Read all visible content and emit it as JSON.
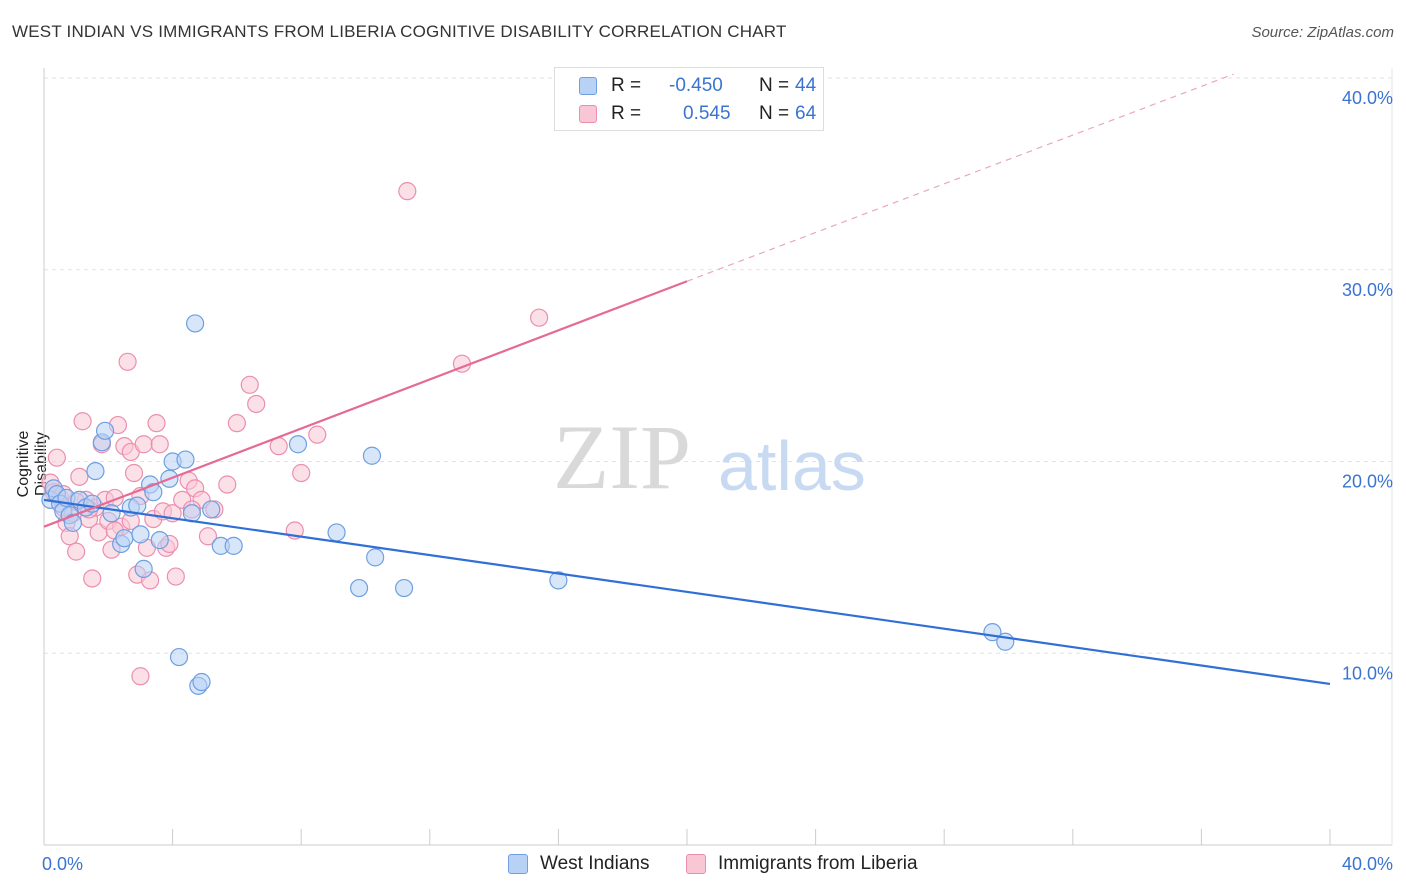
{
  "title": "WEST INDIAN VS IMMIGRANTS FROM LIBERIA COGNITIVE DISABILITY CORRELATION CHART",
  "source": "Source: ZipAtlas.com",
  "watermark": {
    "zip": "ZIP",
    "atlas": "atlas"
  },
  "stats": [
    {
      "r_label": "R =",
      "r_value": "-0.450",
      "n_label": "N =",
      "n_value": "44",
      "color": "blue"
    },
    {
      "r_label": "R =",
      "r_value": "0.545",
      "n_label": "N =",
      "n_value": "64",
      "color": "pink"
    }
  ],
  "legend": [
    {
      "label": "West Indians",
      "color": "blue"
    },
    {
      "label": "Immigrants from Liberia",
      "color": "pink"
    }
  ],
  "colors": {
    "blue_fill": "#b8d2f5",
    "blue_stroke": "#6f9fe0",
    "blue_line": "#2f6fd6",
    "pink_fill": "#f9c6d6",
    "pink_stroke": "#eb8fae",
    "pink_line": "#e56b94",
    "axis_text": "#3a74d0",
    "grid": "#e2e2e2"
  },
  "chart_data": {
    "type": "scatter",
    "title": "WEST INDIAN VS IMMIGRANTS FROM LIBERIA COGNITIVE DISABILITY CORRELATION CHART",
    "xlabel": "",
    "ylabel": "Cognitive Disability",
    "xlim": [
      0,
      40
    ],
    "ylim": [
      0,
      40
    ],
    "x_tick_labels": [
      "0.0%",
      "40.0%"
    ],
    "y_ticks": [
      10,
      20,
      30,
      40
    ],
    "y_tick_labels": [
      "10.0%",
      "20.0%",
      "30.0%",
      "40.0%"
    ],
    "grid": true,
    "series": [
      {
        "name": "West Indians",
        "color": "blue",
        "trendline": {
          "x": [
            0,
            40
          ],
          "y": [
            18.0,
            8.4
          ],
          "dashed_extension": false
        },
        "points": [
          [
            0.2,
            18.0
          ],
          [
            0.3,
            18.6
          ],
          [
            0.4,
            18.3
          ],
          [
            0.5,
            17.8
          ],
          [
            0.6,
            17.4
          ],
          [
            0.7,
            18.1
          ],
          [
            0.8,
            17.2
          ],
          [
            0.9,
            16.8
          ],
          [
            1.1,
            18.0
          ],
          [
            1.3,
            17.6
          ],
          [
            1.5,
            17.8
          ],
          [
            1.6,
            19.5
          ],
          [
            1.8,
            21.0
          ],
          [
            1.9,
            21.6
          ],
          [
            2.1,
            17.3
          ],
          [
            2.4,
            15.7
          ],
          [
            2.5,
            16.0
          ],
          [
            2.7,
            17.6
          ],
          [
            2.9,
            17.7
          ],
          [
            3.0,
            16.2
          ],
          [
            3.1,
            14.4
          ],
          [
            3.3,
            18.8
          ],
          [
            3.4,
            18.4
          ],
          [
            3.6,
            15.9
          ],
          [
            3.9,
            19.1
          ],
          [
            4.0,
            20.0
          ],
          [
            4.2,
            9.8
          ],
          [
            4.4,
            20.1
          ],
          [
            4.6,
            17.3
          ],
          [
            4.7,
            27.2
          ],
          [
            4.8,
            8.3
          ],
          [
            4.9,
            8.5
          ],
          [
            5.2,
            17.5
          ],
          [
            5.5,
            15.6
          ],
          [
            5.9,
            15.6
          ],
          [
            7.9,
            20.9
          ],
          [
            9.1,
            16.3
          ],
          [
            9.8,
            13.4
          ],
          [
            10.2,
            20.3
          ],
          [
            10.3,
            15.0
          ],
          [
            11.2,
            13.4
          ],
          [
            16.0,
            13.8
          ],
          [
            29.5,
            11.1
          ],
          [
            29.9,
            10.6
          ]
        ]
      },
      {
        "name": "Immigrants from Liberia",
        "color": "pink",
        "trendline": {
          "x": [
            0,
            20
          ],
          "y": [
            16.6,
            29.4
          ],
          "dashed_extension": true,
          "dashed_to": [
            37.0,
            40.2
          ]
        },
        "points": [
          [
            0.2,
            18.9
          ],
          [
            0.3,
            18.4
          ],
          [
            0.4,
            20.2
          ],
          [
            0.5,
            18.1
          ],
          [
            0.6,
            17.6
          ],
          [
            0.7,
            16.8
          ],
          [
            0.8,
            16.1
          ],
          [
            0.9,
            17.3
          ],
          [
            1.0,
            15.3
          ],
          [
            1.1,
            19.2
          ],
          [
            1.2,
            22.1
          ],
          [
            1.3,
            18.0
          ],
          [
            1.4,
            17.0
          ],
          [
            1.5,
            13.9
          ],
          [
            1.6,
            17.6
          ],
          [
            1.7,
            16.3
          ],
          [
            1.8,
            20.9
          ],
          [
            1.9,
            18.0
          ],
          [
            2.0,
            16.9
          ],
          [
            2.1,
            15.4
          ],
          [
            2.2,
            18.1
          ],
          [
            2.3,
            21.9
          ],
          [
            2.4,
            16.6
          ],
          [
            2.5,
            20.8
          ],
          [
            2.6,
            25.2
          ],
          [
            2.7,
            20.5
          ],
          [
            2.8,
            19.4
          ],
          [
            2.9,
            14.1
          ],
          [
            3.0,
            18.2
          ],
          [
            3.1,
            20.9
          ],
          [
            3.2,
            15.5
          ],
          [
            3.3,
            13.8
          ],
          [
            3.4,
            17.0
          ],
          [
            3.5,
            22.0
          ],
          [
            3.6,
            20.9
          ],
          [
            3.7,
            17.4
          ],
          [
            3.8,
            15.5
          ],
          [
            4.0,
            17.3
          ],
          [
            4.1,
            14.0
          ],
          [
            4.3,
            18.0
          ],
          [
            4.5,
            19.0
          ],
          [
            4.7,
            18.6
          ],
          [
            4.9,
            18.0
          ],
          [
            5.1,
            16.1
          ],
          [
            5.3,
            17.5
          ],
          [
            5.7,
            18.8
          ],
          [
            6.0,
            22.0
          ],
          [
            6.4,
            24.0
          ],
          [
            6.6,
            23.0
          ],
          [
            7.3,
            20.8
          ],
          [
            7.8,
            16.4
          ],
          [
            8.0,
            19.4
          ],
          [
            8.5,
            21.4
          ],
          [
            11.3,
            34.1
          ],
          [
            13.0,
            25.1
          ],
          [
            15.4,
            27.5
          ],
          [
            3.0,
            8.8
          ],
          [
            2.2,
            16.4
          ],
          [
            1.4,
            17.5
          ],
          [
            0.6,
            18.3
          ],
          [
            2.7,
            16.9
          ],
          [
            3.9,
            15.7
          ],
          [
            4.6,
            17.5
          ],
          [
            1.0,
            17.9
          ]
        ]
      }
    ]
  }
}
